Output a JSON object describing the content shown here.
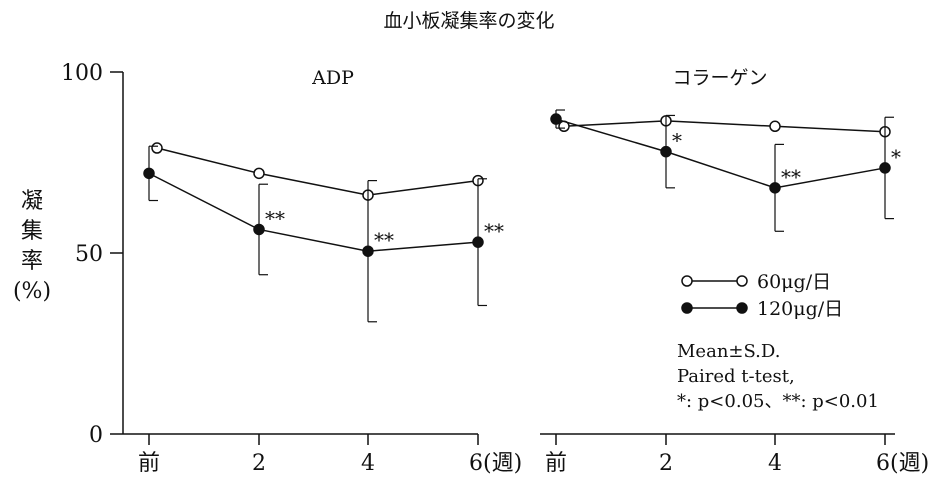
{
  "figure_title": "血小板凝集率の変化",
  "y_axis": {
    "label_chars": [
      "凝",
      "集",
      "率"
    ],
    "unit": "(%)",
    "ticks": [
      "0",
      "50",
      "100"
    ]
  },
  "x_axis": {
    "ticks": [
      "前",
      "2",
      "4",
      "6(週)"
    ]
  },
  "legend": {
    "low_dose": "60μg/日",
    "high_dose": "120μg/日"
  },
  "notes": {
    "line1": "Mean±S.D.",
    "line2": "Paired t-test,",
    "line3": "*: p<0.05、**: p<0.01"
  },
  "chart_data": [
    {
      "type": "line",
      "title": "ADP",
      "x": [
        "前",
        "2",
        "4",
        "6"
      ],
      "ylim": [
        0,
        100
      ],
      "yticks": [
        0,
        50,
        100
      ],
      "grid": false,
      "series": [
        {
          "name": "60μg/日",
          "marker": "open-circle",
          "values": [
            79,
            72,
            66,
            70
          ]
        },
        {
          "name": "120μg/日",
          "marker": "filled-circle",
          "values": [
            72,
            56.5,
            50.5,
            53
          ],
          "sd": [
            7.5,
            12.5,
            19.5,
            17.5
          ],
          "significance": [
            "",
            "**",
            "**",
            "**"
          ]
        }
      ]
    },
    {
      "type": "line",
      "title": "コラーゲン",
      "x": [
        "前",
        "2",
        "4",
        "6"
      ],
      "ylim": [
        0,
        100
      ],
      "yticks": [
        0,
        50,
        100
      ],
      "grid": false,
      "series": [
        {
          "name": "60μg/日",
          "marker": "open-circle",
          "values": [
            85,
            86.5,
            85,
            83.5
          ]
        },
        {
          "name": "120μg/日",
          "marker": "filled-circle",
          "values": [
            87,
            78,
            68,
            73.5
          ],
          "sd": [
            2.5,
            10,
            12,
            14
          ],
          "significance": [
            "",
            "*",
            "**",
            "*"
          ]
        }
      ]
    }
  ]
}
